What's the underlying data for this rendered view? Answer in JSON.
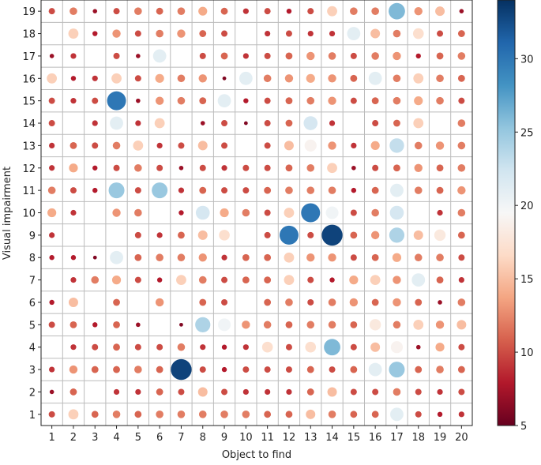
{
  "chart_data": {
    "type": "bubble",
    "x_label": "Object to find",
    "y_label": "Visual impairment",
    "x": [
      1,
      2,
      3,
      4,
      5,
      6,
      7,
      8,
      9,
      10,
      11,
      12,
      13,
      14,
      15,
      16,
      17,
      18,
      19,
      20
    ],
    "y": [
      1,
      2,
      3,
      4,
      5,
      6,
      7,
      8,
      9,
      10,
      11,
      12,
      13,
      14,
      15,
      16,
      17,
      18,
      19
    ],
    "xlim": [
      0.5,
      20.5
    ],
    "ylim": [
      0.5,
      19.5
    ],
    "xticks": [
      1,
      2,
      3,
      4,
      5,
      6,
      7,
      8,
      9,
      10,
      11,
      12,
      13,
      14,
      15,
      16,
      17,
      18,
      19,
      20
    ],
    "yticks": [
      1,
      2,
      3,
      4,
      5,
      6,
      7,
      8,
      9,
      10,
      11,
      12,
      13,
      14,
      15,
      16,
      17,
      18,
      19
    ],
    "colormap": "RdBu",
    "clim": [
      5,
      34
    ],
    "colorbar_ticks": [
      5,
      10,
      15,
      20,
      25,
      30
    ],
    "values": [
      [
        10,
        16,
        11,
        12,
        11,
        12,
        12,
        12,
        12,
        12,
        11,
        11,
        15,
        12,
        11,
        11,
        21,
        10,
        8,
        9
      ],
      [
        7,
        11,
        null,
        9,
        9,
        11,
        10,
        15,
        10,
        9,
        9,
        9,
        11,
        15,
        10,
        10,
        12,
        10,
        9,
        10
      ],
      [
        9,
        13,
        11,
        11,
        12,
        11,
        33,
        10,
        8,
        10,
        10,
        10,
        11,
        10,
        11,
        21,
        25,
        11,
        12,
        11
      ],
      [
        null,
        9,
        10,
        11,
        10,
        10,
        12,
        9,
        8,
        9,
        17,
        10,
        17,
        26,
        10,
        15,
        19,
        7,
        14,
        10
      ],
      [
        10,
        11,
        8,
        11,
        7,
        null,
        6,
        24,
        20,
        13,
        12,
        11,
        12,
        12,
        11,
        18,
        12,
        16,
        13,
        15
      ],
      [
        8,
        15,
        null,
        11,
        null,
        13,
        null,
        11,
        10,
        null,
        11,
        12,
        10,
        12,
        13,
        11,
        13,
        11,
        7,
        12
      ],
      [
        null,
        9,
        12,
        14,
        10,
        8,
        16,
        12,
        10,
        11,
        11,
        16,
        10,
        8,
        14,
        16,
        13,
        21,
        11,
        9
      ],
      [
        8,
        8,
        6,
        21,
        11,
        12,
        12,
        13,
        9,
        11,
        11,
        16,
        13,
        13,
        10,
        11,
        14,
        12,
        12,
        10
      ],
      [
        9,
        null,
        null,
        null,
        10,
        9,
        11,
        15,
        17,
        null,
        10,
        30,
        10,
        33,
        11,
        13,
        24,
        15,
        18,
        11
      ],
      [
        14,
        9,
        null,
        13,
        12,
        null,
        8,
        22,
        14,
        12,
        10,
        16,
        30,
        20,
        10,
        12,
        22,
        null,
        9,
        12
      ],
      [
        12,
        10,
        8,
        25,
        10,
        25,
        9,
        11,
        10,
        10,
        11,
        12,
        12,
        12,
        8,
        11,
        21,
        12,
        11,
        13
      ],
      [
        9,
        14,
        8,
        10,
        12,
        10,
        7,
        10,
        9,
        10,
        10,
        11,
        12,
        16,
        7,
        10,
        11,
        13,
        11,
        12
      ],
      [
        9,
        11,
        10,
        12,
        16,
        9,
        10,
        15,
        10,
        null,
        10,
        15,
        19,
        13,
        9,
        14,
        23,
        12,
        13,
        12
      ],
      [
        10,
        null,
        9,
        21,
        9,
        16,
        null,
        7,
        10,
        6,
        10,
        11,
        22,
        9,
        null,
        10,
        11,
        16,
        null,
        12
      ],
      [
        10,
        9,
        10,
        30,
        7,
        13,
        12,
        11,
        21,
        8,
        10,
        11,
        12,
        13,
        10,
        11,
        12,
        14,
        12,
        10
      ],
      [
        16,
        8,
        9,
        16,
        10,
        14,
        12,
        13,
        6,
        21,
        12,
        13,
        14,
        13,
        11,
        21,
        12,
        16,
        12,
        11
      ],
      [
        7,
        9,
        null,
        10,
        7,
        21,
        null,
        10,
        11,
        9,
        10,
        11,
        13,
        12,
        10,
        12,
        13,
        8,
        11,
        12
      ],
      [
        null,
        16,
        8,
        13,
        10,
        12,
        13,
        11,
        10,
        null,
        9,
        10,
        9,
        9,
        21,
        15,
        12,
        17,
        10,
        11
      ],
      [
        10,
        12,
        7,
        10,
        12,
        11,
        12,
        14,
        11,
        9,
        10,
        8,
        10,
        16,
        12,
        12,
        26,
        13,
        15,
        7
      ]
    ]
  }
}
